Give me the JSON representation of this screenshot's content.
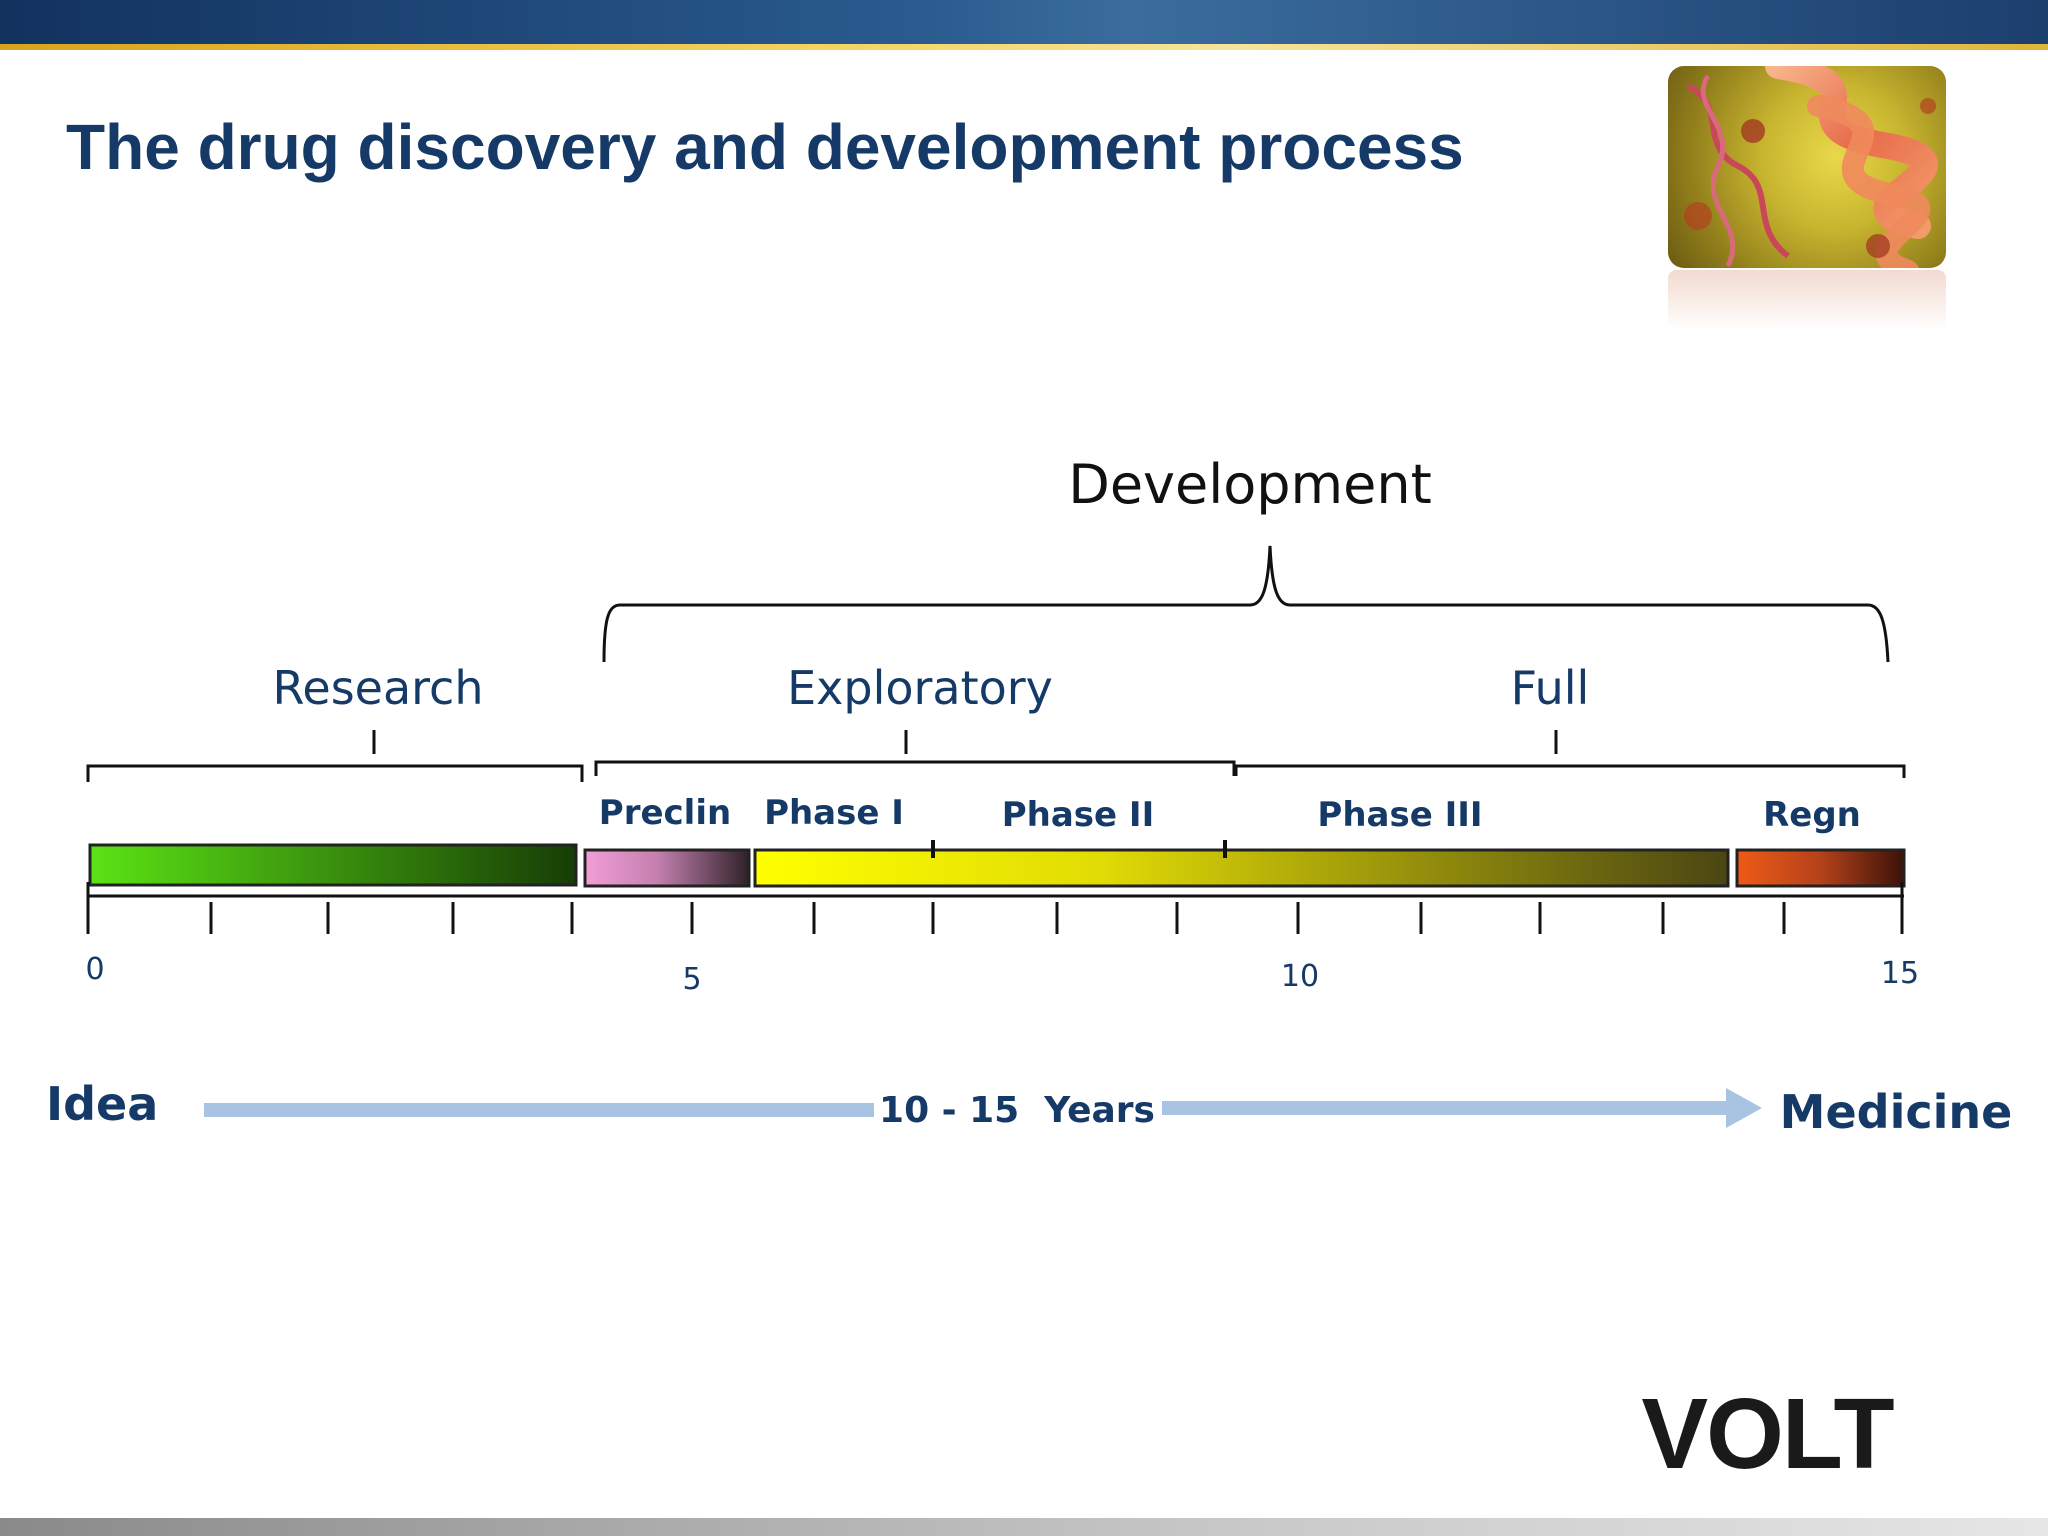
{
  "slide": {
    "title": "The drug discovery and development process",
    "logo_text": "VOLT"
  },
  "diagram": {
    "development_label": "Development",
    "groups": [
      {
        "label": "Research"
      },
      {
        "label": "Exploratory"
      },
      {
        "label": "Full"
      }
    ],
    "stages": [
      {
        "label": "Preclin"
      },
      {
        "label": "Phase I"
      },
      {
        "label": "Phase II"
      },
      {
        "label": "Phase III"
      },
      {
        "label": "Regn"
      }
    ],
    "axis_ticks": [
      "0",
      "5",
      "10",
      "15"
    ],
    "idea_label": "Idea",
    "duration_label": "10 - 15  Years",
    "medicine_label": "Medicine"
  },
  "colors": {
    "title": "#163a68",
    "label": "#163a68",
    "arrow": "#a9c4e2"
  }
}
